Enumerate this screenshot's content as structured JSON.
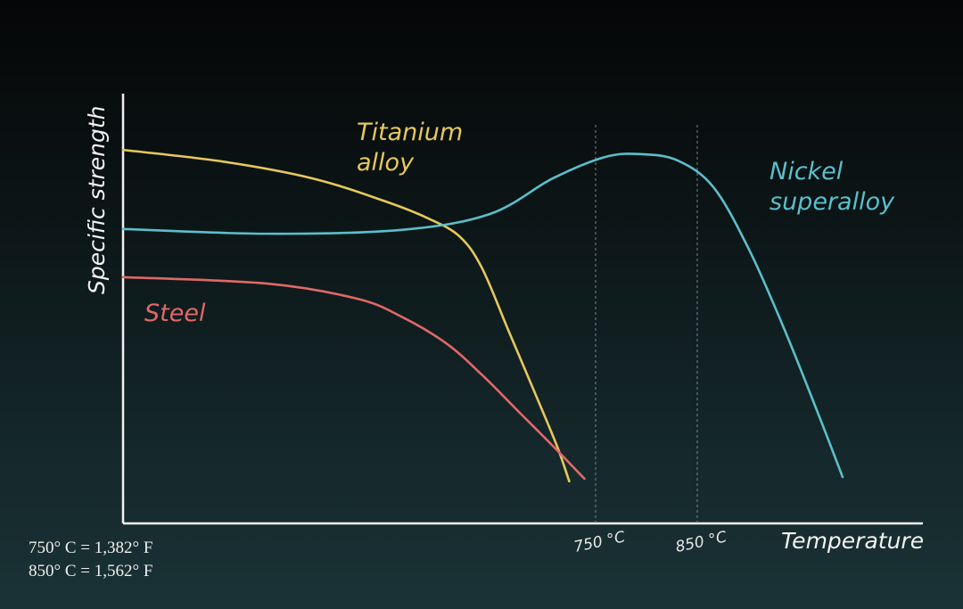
{
  "chart_data": {
    "type": "line",
    "y_label": "Specific strength",
    "x_label": "Temperature",
    "xlim": [
      285,
      1072
    ],
    "ylim": [
      0,
      100
    ],
    "xticks": [
      {
        "value": 750,
        "label": "750 °C"
      },
      {
        "value": 850,
        "label": "850 °C"
      }
    ],
    "grid": true,
    "series": [
      {
        "name": "Titanium alloy",
        "color": "#e6c85c",
        "x": [
          285,
          383,
          471,
          541,
          585,
          616,
          638,
          664,
          690,
          712,
          724
        ],
        "values": [
          86.9,
          84.2,
          80.3,
          75.1,
          71.0,
          66.8,
          59.5,
          45.0,
          30.5,
          18.0,
          9.8
        ]
      },
      {
        "name": "Nickel superalloy",
        "color": "#5bbfcb",
        "x": [
          285,
          427,
          559,
          646,
          708,
          760,
          796,
          831,
          866,
          901,
          936,
          971,
          993
        ],
        "values": [
          68.5,
          67.4,
          68.3,
          72.0,
          80.3,
          85.3,
          85.9,
          84.4,
          78.2,
          63.7,
          45.0,
          24.3,
          10.8
        ]
      },
      {
        "name": "Steel",
        "color": "#e06868",
        "x": [
          285,
          427,
          515,
          559,
          603,
          638,
          673,
          708,
          739
        ],
        "values": [
          57.3,
          55.8,
          52.3,
          48.1,
          41.9,
          34.6,
          26.3,
          18.0,
          10.4
        ]
      }
    ],
    "notes": [
      "750° C = 1,382° F",
      "850° C = 1,562° F"
    ]
  }
}
